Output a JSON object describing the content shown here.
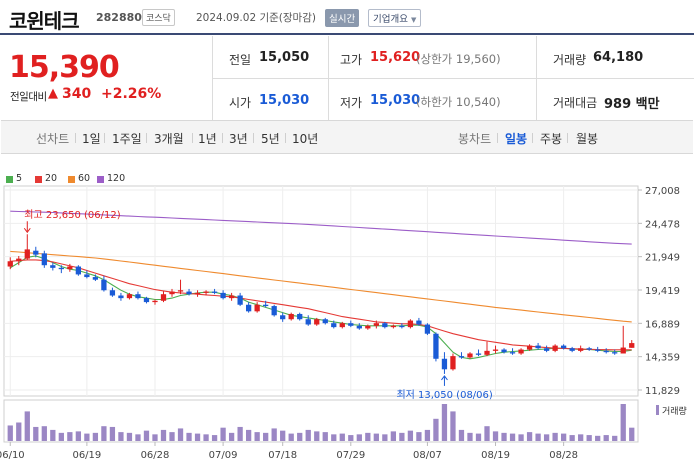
{
  "header": {
    "name": "코윈테크",
    "code": "282880",
    "market": "코스닥",
    "date": "2024.09.02 기준(장마감)",
    "realtime_label": "실시간",
    "company_label": "기업개요"
  },
  "price": {
    "current": "15,390",
    "change_label": "전일대비",
    "change_symbol": "▲",
    "change": "340",
    "change_rate": "+2.26%"
  },
  "stats": {
    "prev_label": "전일",
    "prev": "15,050",
    "high_label": "고가",
    "high": "15,620",
    "upper_limit": "(상한가 19,560)",
    "volume_label": "거래량",
    "volume": "64,180",
    "open_label": "시가",
    "open": "15,030",
    "low_label": "저가",
    "low": "15,030",
    "lower_limit": "(하한가 10,540)",
    "amount_label": "거래대금",
    "amount": "989 백만"
  },
  "tabs": {
    "line_label": "선차트",
    "line_items": [
      "1일",
      "1주일",
      "3개월",
      "1년",
      "3년",
      "5년",
      "10년"
    ],
    "candle_label": "봉차트",
    "candle_items": [
      "일봉",
      "주봉",
      "월봉"
    ]
  },
  "legend": [
    {
      "label": "5",
      "color": "#4caf50"
    },
    {
      "label": "20",
      "color": "#e53935"
    },
    {
      "label": "60",
      "color": "#ef8a2e"
    },
    {
      "label": "120",
      "color": "#9c5ec8"
    }
  ],
  "volume_label": "거래량",
  "colors": {
    "up": "#e02020",
    "down": "#1a5bd6",
    "volume": "#9b87c4"
  },
  "chart_data": {
    "type": "candlestick",
    "ylim": [
      11829,
      27008
    ],
    "y_ticks": [
      "27,008",
      "24,478",
      "21,949",
      "19,419",
      "16,889",
      "14,359",
      "11,829"
    ],
    "y_tick_values": [
      27008,
      24478,
      21949,
      19419,
      16889,
      14359,
      11829
    ],
    "x_ticks": [
      "06/10",
      "06/19",
      "06/28",
      "07/09",
      "07/18",
      "07/29",
      "08/07",
      "08/19",
      "08/28"
    ],
    "high_annotation": "최고 23,650 (06/12)",
    "low_annotation": "최저 13,050 (08/06)",
    "high_value": 23650,
    "low_value": 13050,
    "candles": [
      [
        21200,
        21900,
        21000,
        21600
      ],
      [
        21600,
        22000,
        21300,
        21800
      ],
      [
        21800,
        23650,
        21700,
        22500
      ],
      [
        22400,
        22700,
        21900,
        22100
      ],
      [
        22200,
        22400,
        21100,
        21300
      ],
      [
        21300,
        21500,
        20900,
        21100
      ],
      [
        21100,
        21300,
        20700,
        21000
      ],
      [
        21000,
        21400,
        20800,
        21200
      ],
      [
        21200,
        21300,
        20500,
        20600
      ],
      [
        20600,
        20900,
        20300,
        20400
      ],
      [
        20400,
        20600,
        20100,
        20200
      ],
      [
        20200,
        20500,
        19300,
        19400
      ],
      [
        19400,
        19600,
        18900,
        19000
      ],
      [
        19000,
        19200,
        18600,
        18800
      ],
      [
        18800,
        19200,
        18700,
        19100
      ],
      [
        19100,
        19300,
        18700,
        18800
      ],
      [
        18800,
        18900,
        18400,
        18500
      ],
      [
        18500,
        18700,
        18300,
        18600
      ],
      [
        18600,
        19300,
        18500,
        19100
      ],
      [
        19100,
        19500,
        18900,
        19300
      ],
      [
        19300,
        20200,
        19100,
        19400
      ],
      [
        19300,
        19500,
        19000,
        19100
      ],
      [
        19100,
        19400,
        18900,
        19200
      ],
      [
        19200,
        19400,
        19000,
        19300
      ],
      [
        19300,
        19500,
        19100,
        19200
      ],
      [
        19200,
        19400,
        18700,
        18800
      ],
      [
        18800,
        19200,
        18600,
        19000
      ],
      [
        19000,
        19200,
        18200,
        18300
      ],
      [
        18300,
        18500,
        17700,
        17800
      ],
      [
        17800,
        18500,
        17700,
        18300
      ],
      [
        18300,
        18600,
        18100,
        18200
      ],
      [
        18200,
        18300,
        17400,
        17500
      ],
      [
        17500,
        17700,
        17000,
        17200
      ],
      [
        17200,
        17700,
        17100,
        17600
      ],
      [
        17600,
        17700,
        17100,
        17200
      ],
      [
        17200,
        17500,
        16700,
        16800
      ],
      [
        16800,
        17300,
        16700,
        17200
      ],
      [
        17200,
        17300,
        16800,
        16900
      ],
      [
        16900,
        17100,
        16500,
        16600
      ],
      [
        16600,
        17000,
        16500,
        16900
      ],
      [
        16900,
        17100,
        16600,
        16700
      ],
      [
        16700,
        16900,
        16400,
        16500
      ],
      [
        16500,
        16800,
        16400,
        16700
      ],
      [
        16700,
        17100,
        16500,
        16900
      ],
      [
        16900,
        17000,
        16500,
        16600
      ],
      [
        16600,
        16800,
        16500,
        16700
      ],
      [
        16700,
        16900,
        16500,
        16600
      ],
      [
        16600,
        17200,
        16500,
        17100
      ],
      [
        17100,
        17300,
        16700,
        16800
      ],
      [
        16800,
        16900,
        16000,
        16100
      ],
      [
        16100,
        16200,
        14000,
        14200
      ],
      [
        14200,
        14700,
        13050,
        13400
      ],
      [
        13400,
        14600,
        13300,
        14400
      ],
      [
        14400,
        14700,
        14200,
        14300
      ],
      [
        14300,
        14700,
        14200,
        14600
      ],
      [
        14600,
        14900,
        14400,
        14500
      ],
      [
        14500,
        15500,
        14400,
        14800
      ],
      [
        14800,
        15200,
        14600,
        14900
      ],
      [
        14900,
        15000,
        14600,
        14700
      ],
      [
        14700,
        15000,
        14500,
        14600
      ],
      [
        14600,
        15000,
        14500,
        14900
      ],
      [
        14900,
        15300,
        14800,
        15200
      ],
      [
        15200,
        15400,
        14900,
        15000
      ],
      [
        15000,
        15200,
        14700,
        14800
      ],
      [
        14800,
        15300,
        14700,
        15200
      ],
      [
        15200,
        15300,
        14900,
        15000
      ],
      [
        15000,
        15100,
        14700,
        14800
      ],
      [
        14800,
        15200,
        14700,
        15000
      ],
      [
        15000,
        15100,
        14800,
        14900
      ],
      [
        14900,
        15100,
        14700,
        14800
      ],
      [
        14800,
        15000,
        14600,
        14700
      ],
      [
        14700,
        14900,
        14500,
        14600
      ],
      [
        14600,
        16700,
        14600,
        15050
      ],
      [
        15030,
        15620,
        15030,
        15390
      ]
    ],
    "ma5": [
      21100,
      21500,
      21900,
      22000,
      21800,
      21500,
      21200,
      21000,
      20900,
      20700,
      20500,
      20200,
      19800,
      19400,
      19100,
      18900,
      18800,
      18700,
      18700,
      18800,
      19000,
      19100,
      19200,
      19250,
      19250,
      19100,
      19000,
      18800,
      18500,
      18300,
      18100,
      17900,
      17700,
      17500,
      17400,
      17300,
      17200,
      17100,
      17000,
      16900,
      16800,
      16750,
      16700,
      16700,
      16700,
      16700,
      16700,
      16750,
      16750,
      16600,
      16100,
      15400,
      14700,
      14300,
      14200,
      14300,
      14450,
      14600,
      14700,
      14750,
      14800,
      14850,
      14900,
      14950,
      15000,
      15000,
      14950,
      14900,
      14900,
      14850,
      14800,
      14750,
      14750,
      14850
    ],
    "ma20": [
      21600,
      21650,
      21700,
      21700,
      21650,
      21550,
      21400,
      21250,
      21100,
      20900,
      20700,
      20500,
      20300,
      20100,
      19900,
      19750,
      19600,
      19450,
      19350,
      19250,
      19200,
      19150,
      19100,
      19050,
      19000,
      18950,
      18900,
      18800,
      18700,
      18600,
      18500,
      18400,
      18300,
      18200,
      18100,
      18000,
      17850,
      17700,
      17550,
      17400,
      17300,
      17200,
      17100,
      17000,
      16950,
      16900,
      16850,
      16850,
      16800,
      16700,
      16500,
      16300,
      16100,
      15950,
      15800,
      15650,
      15550,
      15450,
      15350,
      15250,
      15200,
      15150,
      15100,
      15050,
      15000,
      14980,
      14960,
      14940,
      14920,
      14900,
      14890,
      14880,
      14880,
      14880
    ],
    "ma60": [
      22350,
      22300,
      22250,
      22200,
      22150,
      22100,
      22050,
      22000,
      21950,
      21900,
      21850,
      21780,
      21700,
      21620,
      21540,
      21460,
      21380,
      21300,
      21220,
      21140,
      21060,
      20980,
      20900,
      20820,
      20740,
      20660,
      20580,
      20500,
      20420,
      20340,
      20260,
      20180,
      20100,
      20020,
      19940,
      19860,
      19780,
      19700,
      19620,
      19540,
      19460,
      19380,
      19300,
      19220,
      19140,
      19060,
      18980,
      18900,
      18820,
      18740,
      18660,
      18580,
      18500,
      18420,
      18340,
      18260,
      18180,
      18100,
      18030,
      17960,
      17890,
      17820,
      17750,
      17680,
      17610,
      17540,
      17470,
      17400,
      17330,
      17260,
      17190,
      17120,
      17050,
      17000
    ],
    "ma120": [
      25400,
      25380,
      25360,
      25340,
      25320,
      25300,
      25270,
      25240,
      25210,
      25180,
      25150,
      25120,
      25090,
      25060,
      25030,
      25000,
      24970,
      24940,
      24910,
      24880,
      24850,
      24820,
      24790,
      24760,
      24730,
      24700,
      24670,
      24640,
      24610,
      24580,
      24550,
      24520,
      24490,
      24460,
      24430,
      24400,
      24360,
      24320,
      24280,
      24240,
      24200,
      24160,
      24120,
      24080,
      24040,
      24000,
      23960,
      23920,
      23880,
      23840,
      23800,
      23760,
      23720,
      23680,
      23640,
      23600,
      23560,
      23520,
      23480,
      23440,
      23400,
      23360,
      23320,
      23280,
      23240,
      23200,
      23160,
      23120,
      23080,
      23040,
      23000,
      22960,
      22930,
      22900
    ],
    "volume": [
      42,
      50,
      80,
      38,
      40,
      30,
      22,
      24,
      26,
      20,
      22,
      40,
      38,
      24,
      22,
      18,
      28,
      18,
      30,
      24,
      34,
      22,
      20,
      18,
      16,
      36,
      22,
      38,
      30,
      24,
      22,
      34,
      28,
      20,
      22,
      30,
      26,
      24,
      18,
      20,
      16,
      18,
      22,
      20,
      18,
      26,
      22,
      28,
      24,
      30,
      60,
      100,
      80,
      30,
      22,
      20,
      40,
      26,
      22,
      20,
      18,
      24,
      20,
      18,
      22,
      20,
      16,
      18,
      16,
      14,
      16,
      14,
      100,
      36
    ]
  }
}
